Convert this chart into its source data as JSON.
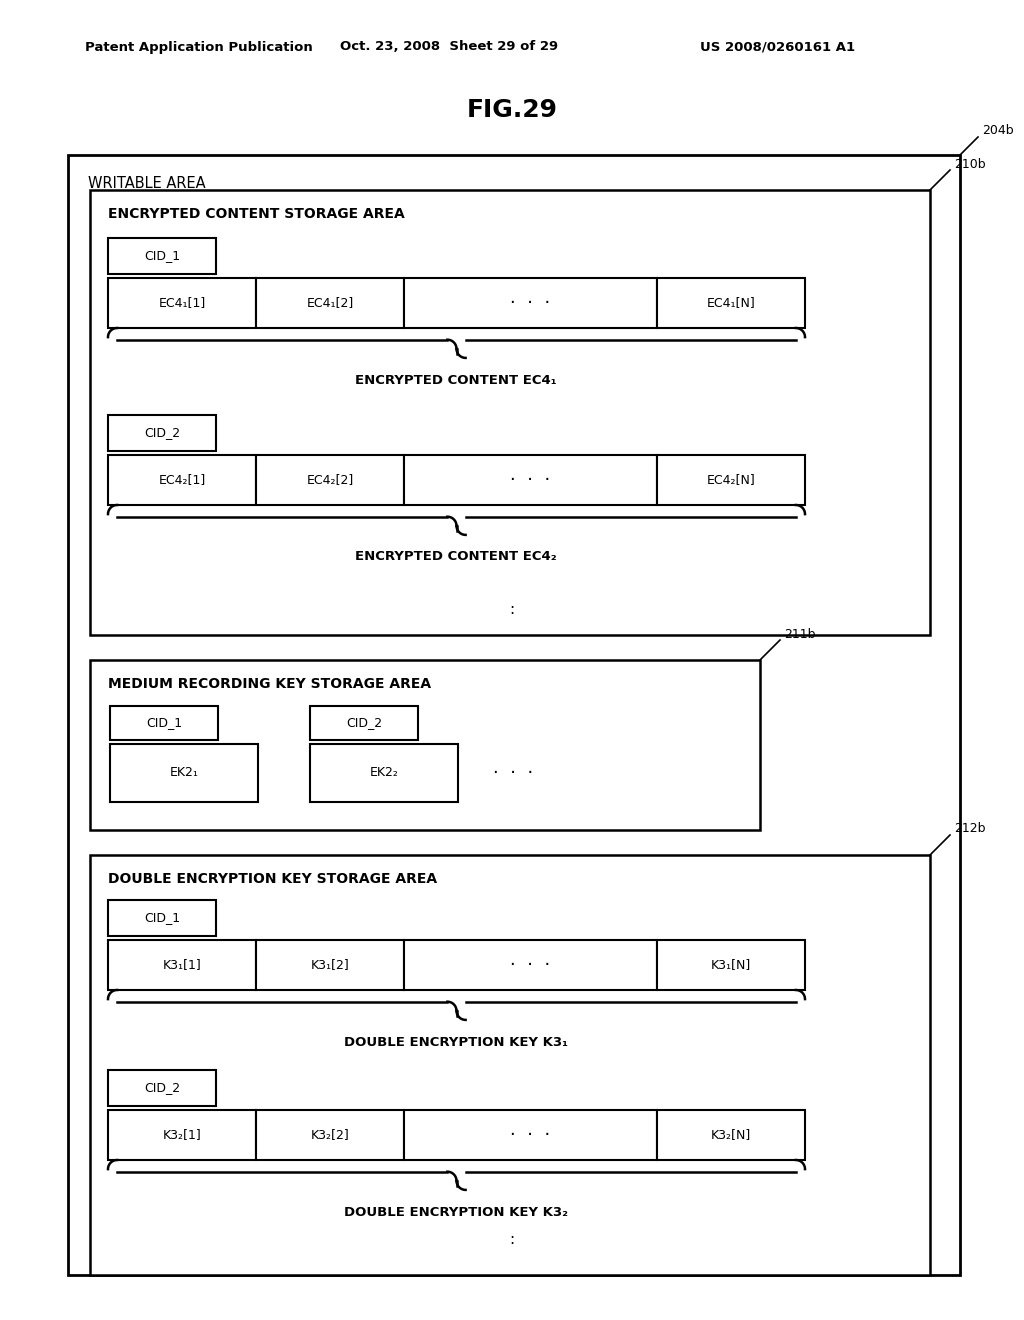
{
  "bg_color": "#ffffff",
  "header_line1": "Patent Application Publication",
  "header_line2": "Oct. 23, 2008  Sheet 29 of 29",
  "header_line3": "US 2008/0260161 A1",
  "fig_title": "FIG.29",
  "label_204b": "204b",
  "label_210b": "210b",
  "label_211b": "211b",
  "label_212b": "212b",
  "writable_area": "WRITABLE AREA",
  "encrypted_content_storage": "ENCRYPTED CONTENT STORAGE AREA",
  "medium_recording": "MEDIUM RECORDING KEY STORAGE AREA",
  "double_encryption": "DOUBLE ENCRYPTION KEY STORAGE AREA",
  "cid1": "CID_1",
  "cid2": "CID_2",
  "ec41_1": "EC4₁[1]",
  "ec41_2": "EC4₁[2]",
  "ec41_dots": "·  ·  ·",
  "ec41_N": "EC4₁[N]",
  "ec42_1": "EC4₂[1]",
  "ec42_2": "EC4₂[2]",
  "ec42_dots": "·  ·  ·",
  "ec42_N": "EC4₂[N]",
  "encrypted_content_ec41": "ENCRYPTED CONTENT EC4₁",
  "encrypted_content_ec42": "ENCRYPTED CONTENT EC4₂",
  "ek21": "EK2₁",
  "ek22": "EK2₂",
  "ek_dots": "·  ·  ·",
  "k31_1": "K3₁[1]",
  "k31_2": "K3₁[2]",
  "k31_dots": "·  ·  ·",
  "k31_N": "K3₁[N]",
  "k32_1": "K3₂[1]",
  "k32_2": "K3₂[2]",
  "k32_dots": "·  ·  ·",
  "k32_N": "K3₂[N]",
  "double_enc_key_k31": "DOUBLE ENCRYPTION KEY K3₁",
  "double_enc_key_k32": "DOUBLE ENCRYPTION KEY K3₂",
  "vdots": ":",
  "vdots2": "."
}
